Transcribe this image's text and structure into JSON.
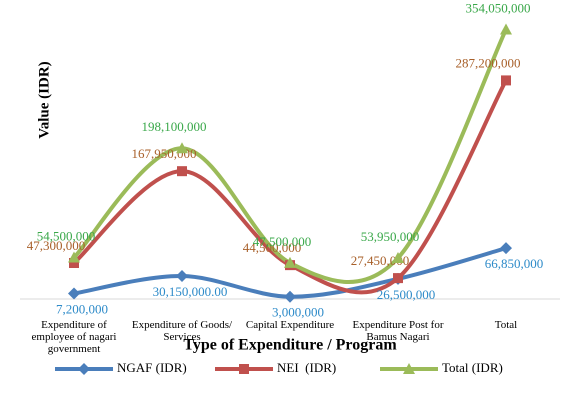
{
  "chart_data": {
    "type": "line",
    "x_label": "Type of Expenditure / Program",
    "y_label": "Value (IDR)",
    "categories": [
      "Expenditure of employee of nagari government",
      "Expenditure of Goods/ Services",
      "Capital Expenditure",
      "Expenditure Post for Bamus Nagari",
      "Total"
    ],
    "ylim": [
      0,
      360000000
    ],
    "smooth": true,
    "legend": "bottom",
    "series": [
      {
        "name": "NGAF (IDR)",
        "color": "#4a7ebb",
        "label_color": "#2e8bc9",
        "marker": "diamond",
        "values": [
          7200000,
          30150000,
          3000000,
          26500000,
          66850000
        ],
        "value_labels": [
          "7,200,000",
          "30,150,000.00",
          "3,000,000",
          "26,500,000",
          "66,850,000"
        ]
      },
      {
        "name": "NEI  (IDR)",
        "color": "#c0504d",
        "label_color": "#a8602a",
        "marker": "square",
        "values": [
          47300000,
          167950000,
          44500000,
          27450000,
          287200000
        ],
        "value_labels": [
          "47,300,000",
          "167,950,000",
          "44,500,000",
          "27,450,000",
          "287,200,000"
        ]
      },
      {
        "name": "Total (IDR)",
        "color": "#9bbb59",
        "label_color": "#3aa84a",
        "marker": "triangle",
        "values": [
          54500000,
          198100000,
          47500000,
          53950000,
          354050000
        ],
        "value_labels": [
          "54,500,000",
          "198,100,000",
          "47,500,000",
          "53,950,000",
          "354,050,000"
        ]
      }
    ]
  }
}
